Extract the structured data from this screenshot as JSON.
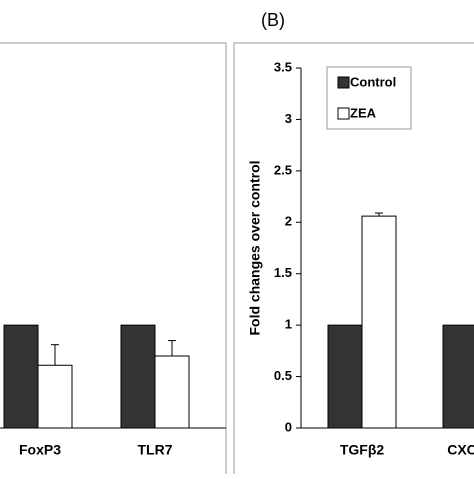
{
  "figure": {
    "panel_label": "(B)"
  },
  "colors": {
    "control": "#333333",
    "zea": "#ffffff",
    "frame": "#999999",
    "axis": "#000000"
  },
  "chart_data": [
    {
      "type": "bar",
      "panel": "A (partially visible)",
      "categories": [
        "FoxP3",
        "TLR7"
      ],
      "series": [
        {
          "name": "Control",
          "values": [
            1.0,
            1.0
          ],
          "errors": [
            0,
            0
          ]
        },
        {
          "name": "ZEA",
          "values": [
            0.61,
            0.7
          ],
          "errors": [
            0.2,
            0.15
          ]
        }
      ],
      "title": "",
      "xlabel": "",
      "ylabel": "",
      "ylim": [
        0,
        3.5
      ],
      "grid": false,
      "legend": "none"
    },
    {
      "type": "bar",
      "panel": "B",
      "categories": [
        "TGFβ2",
        "CXC"
      ],
      "series": [
        {
          "name": "Control",
          "values": [
            1.0,
            1.0
          ],
          "errors": [
            0,
            0
          ]
        },
        {
          "name": "ZEA",
          "values": [
            2.06,
            null
          ],
          "errors": [
            0.03,
            null
          ]
        }
      ],
      "title": "(B)",
      "xlabel": "",
      "ylabel": "Fold changes over control",
      "ylim": [
        0,
        3.5
      ],
      "yticks": [
        "0",
        "0.5",
        "1",
        "1.5",
        "2",
        "2.5",
        "3",
        "3.5"
      ],
      "grid": false,
      "legend": "top-left"
    }
  ]
}
